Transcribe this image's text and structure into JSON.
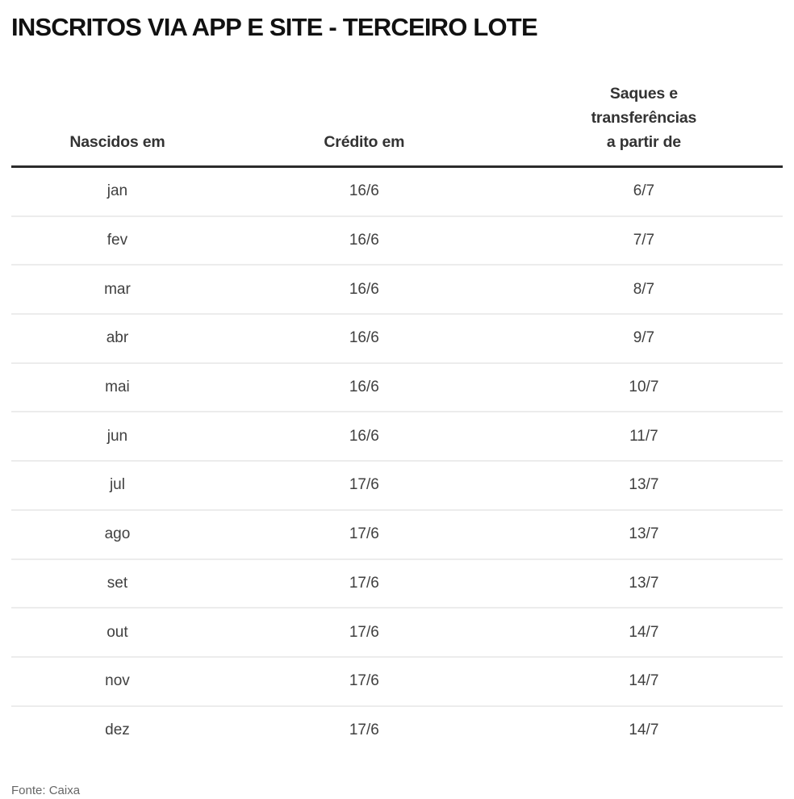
{
  "title": "INSCRITOS VIA APP E SITE - TERCEIRO LOTE",
  "source": "Fonte: Caixa",
  "colors": {
    "background": "#ffffff",
    "title_text": "#111111",
    "header_text": "#333333",
    "header_rule": "#2b2b2b",
    "row_divider": "#ececec",
    "cell_text": "#404040",
    "source_text": "#666666"
  },
  "table": {
    "headers": {
      "col1": "Nascidos em",
      "col2": "Crédito em",
      "col3": "Saques e\ntransferências\na partir de"
    },
    "rows": [
      {
        "nascidos": "jan",
        "credito": "16/6",
        "saques": "6/7"
      },
      {
        "nascidos": "fev",
        "credito": "16/6",
        "saques": "7/7"
      },
      {
        "nascidos": "mar",
        "credito": "16/6",
        "saques": "8/7"
      },
      {
        "nascidos": "abr",
        "credito": "16/6",
        "saques": "9/7"
      },
      {
        "nascidos": "mai",
        "credito": "16/6",
        "saques": "10/7"
      },
      {
        "nascidos": "jun",
        "credito": "16/6",
        "saques": "11/7"
      },
      {
        "nascidos": "jul",
        "credito": "17/6",
        "saques": "13/7"
      },
      {
        "nascidos": "ago",
        "credito": "17/6",
        "saques": "13/7"
      },
      {
        "nascidos": "set",
        "credito": "17/6",
        "saques": "13/7"
      },
      {
        "nascidos": "out",
        "credito": "17/6",
        "saques": "14/7"
      },
      {
        "nascidos": "nov",
        "credito": "17/6",
        "saques": "14/7"
      },
      {
        "nascidos": "dez",
        "credito": "17/6",
        "saques": "14/7"
      }
    ]
  },
  "chart_data": {
    "type": "table",
    "title": "INSCRITOS VIA APP E SITE - TERCEIRO LOTE",
    "columns": [
      "Nascidos em",
      "Crédito em",
      "Saques e transferências a partir de"
    ],
    "rows": [
      [
        "jan",
        "16/6",
        "6/7"
      ],
      [
        "fev",
        "16/6",
        "7/7"
      ],
      [
        "mar",
        "16/6",
        "8/7"
      ],
      [
        "abr",
        "16/6",
        "9/7"
      ],
      [
        "mai",
        "16/6",
        "10/7"
      ],
      [
        "jun",
        "16/6",
        "11/7"
      ],
      [
        "jul",
        "17/6",
        "13/7"
      ],
      [
        "ago",
        "17/6",
        "13/7"
      ],
      [
        "set",
        "17/6",
        "13/7"
      ],
      [
        "out",
        "17/6",
        "14/7"
      ],
      [
        "nov",
        "17/6",
        "14/7"
      ],
      [
        "dez",
        "17/6",
        "14/7"
      ]
    ],
    "source": "Fonte: Caixa"
  }
}
